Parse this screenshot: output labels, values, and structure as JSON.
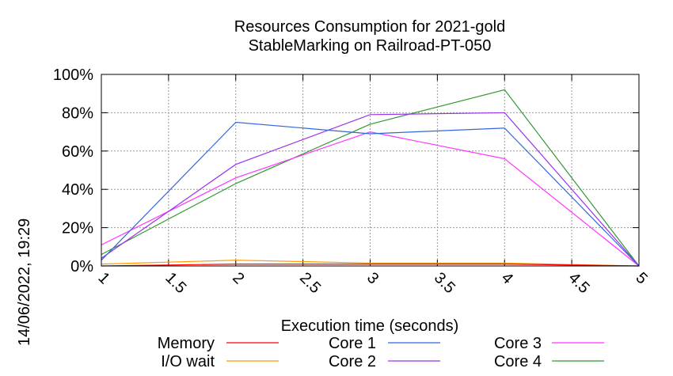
{
  "chart_data": {
    "type": "line",
    "title": "Resources Consumption for 2021-gold",
    "subtitle": "StableMarking on Railroad-PT-050",
    "xlabel": "Execution time (seconds)",
    "ylabel": "",
    "x": [
      1,
      2,
      3,
      4,
      5
    ],
    "xlim": [
      1,
      5
    ],
    "ylim": [
      0,
      100
    ],
    "x_ticks": [
      "1",
      "1.5",
      "2",
      "2.5",
      "3",
      "3.5",
      "4",
      "4.5",
      "5"
    ],
    "y_ticks": [
      "0%",
      "20%",
      "40%",
      "60%",
      "80%",
      "100%"
    ],
    "grid": true,
    "legend_position": "bottom",
    "series": [
      {
        "name": "Memory",
        "color": "#ff0000",
        "values": [
          0,
          1,
          1,
          1,
          0
        ]
      },
      {
        "name": "I/O wait",
        "color": "#ff9900",
        "values": [
          1,
          3,
          1.5,
          1.5,
          0
        ]
      },
      {
        "name": "Core 1",
        "color": "#3366dd",
        "values": [
          3,
          75,
          69,
          72,
          0
        ]
      },
      {
        "name": "Core 2",
        "color": "#9933ee",
        "values": [
          4,
          53,
          79,
          80,
          0
        ]
      },
      {
        "name": "Core 3",
        "color": "#ff33ff",
        "values": [
          11,
          46,
          70,
          56,
          0
        ]
      },
      {
        "name": "Core 4",
        "color": "#339933",
        "values": [
          6,
          43,
          74,
          92,
          0
        ]
      }
    ]
  },
  "timestamp": "14/06/2022, 19:29"
}
